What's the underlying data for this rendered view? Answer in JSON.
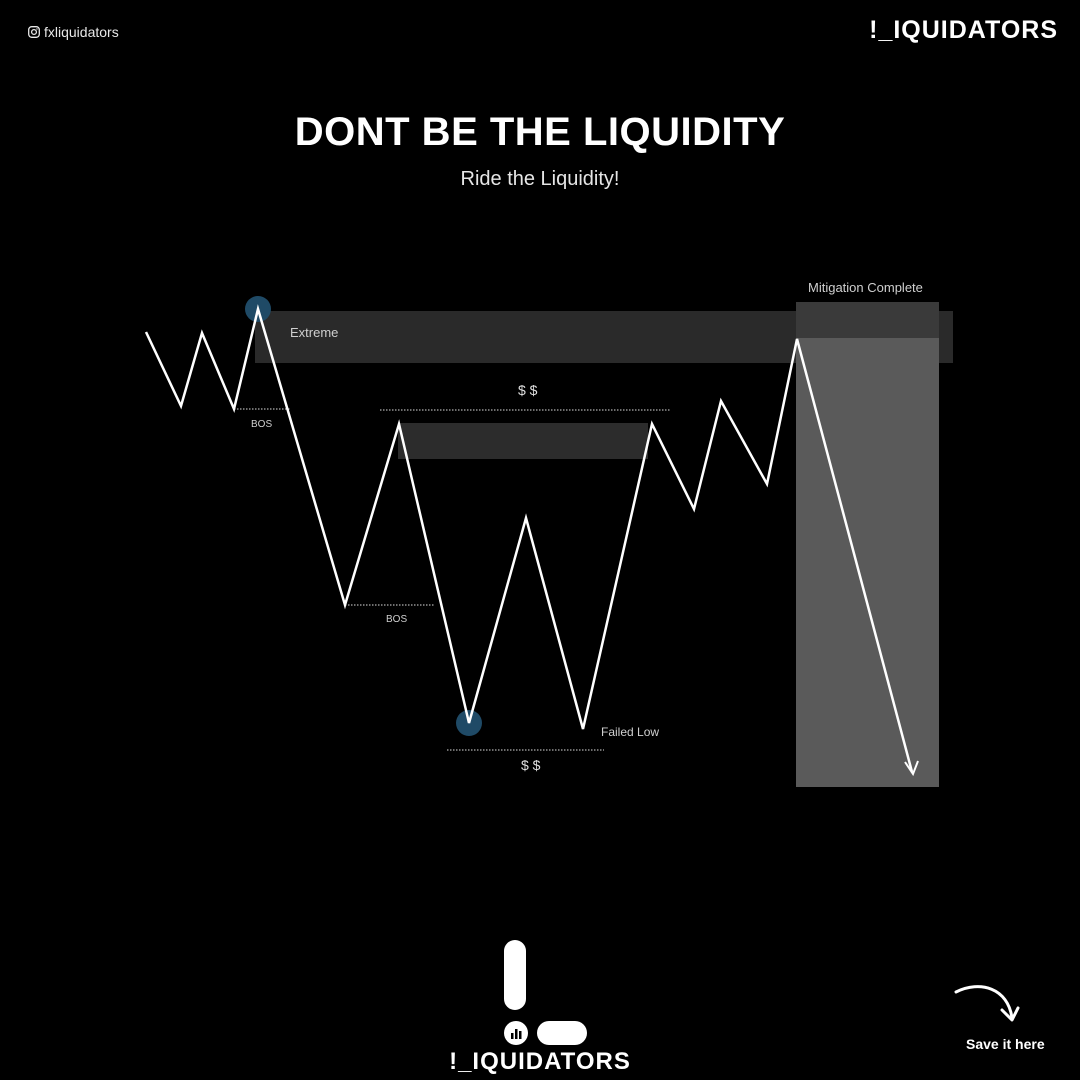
{
  "header": {
    "handle": "fxliquidators",
    "brand": "!_IQUIDATORS"
  },
  "title": "DONT BE THE LIQUIDITY",
  "subtitle": "Ride the Liquidity!",
  "diagram": {
    "labels": {
      "extreme": "Extreme",
      "mitigation": "Mitigation Complete",
      "bos_1": "BOS",
      "bos_2": "BOS",
      "liquidity_top": "$ $",
      "liquidity_bottom": "$ $",
      "failed_low": "Failed Low"
    },
    "colors": {
      "background": "#000000",
      "price_line": "#ffffff",
      "zone": "#2a2a2a",
      "mitigation_zone": "#5a5a5a",
      "highlight_marker": "#1f4a66"
    }
  },
  "footer": {
    "brand": "!_IQUIDATORS",
    "save_label": "Save it here"
  }
}
